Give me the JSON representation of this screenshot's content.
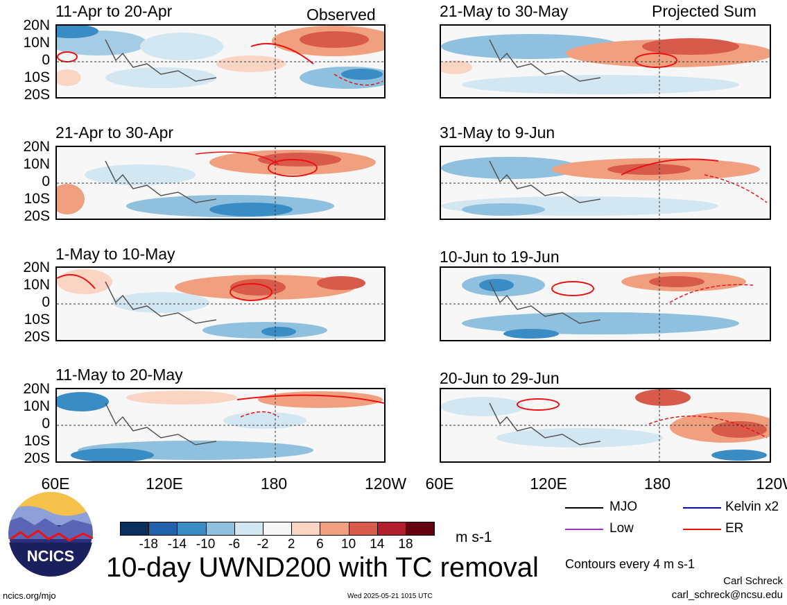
{
  "header": {
    "observed_label": "Observed",
    "projected_label": "Projected Sum"
  },
  "panels": [
    {
      "title": "11-Apr to 20-Apr"
    },
    {
      "title": "21-May to 30-May"
    },
    {
      "title": "21-Apr to 30-Apr"
    },
    {
      "title": "31-May to 9-Jun"
    },
    {
      "title": "1-May to 10-May"
    },
    {
      "title": "10-Jun to 19-Jun"
    },
    {
      "title": "11-May to 20-May"
    },
    {
      "title": "20-Jun to 29-Jun"
    }
  ],
  "axes": {
    "lat_labels": [
      "20N",
      "10N",
      "0",
      "10S",
      "20S"
    ],
    "lon_labels": [
      "60E",
      "120E",
      "180",
      "120W"
    ]
  },
  "colorbar": {
    "labels": [
      "-18",
      "-14",
      "-10",
      "-6",
      "-2",
      "2",
      "6",
      "10",
      "14",
      "18"
    ],
    "units": "m s-1",
    "colors": [
      "#0b2f5c",
      "#1f62ab",
      "#3a8cc4",
      "#8fc1de",
      "#d3e7f3",
      "#f7f7f7",
      "#fbd5c4",
      "#f1a07f",
      "#d75a4a",
      "#b01f2b",
      "#64000f"
    ]
  },
  "title": "10-day UWND200 with TC removal",
  "legend": {
    "items": [
      {
        "label": "MJO",
        "color": "#000000"
      },
      {
        "label": "Kelvin x2",
        "color": "#0000dd"
      },
      {
        "label": "Low",
        "color": "#9933cc"
      },
      {
        "label": "ER",
        "color": "#ee1111"
      }
    ],
    "contour_note": "Contours every 4 m s-1"
  },
  "footer": {
    "site": "ncics.org/mjo",
    "timestamp": "Wed 2025-05-21 1015 UTC",
    "author": "Carl Schreck",
    "email": "carl_schreck@ncsu.edu",
    "logo_text": "NCICS"
  }
}
